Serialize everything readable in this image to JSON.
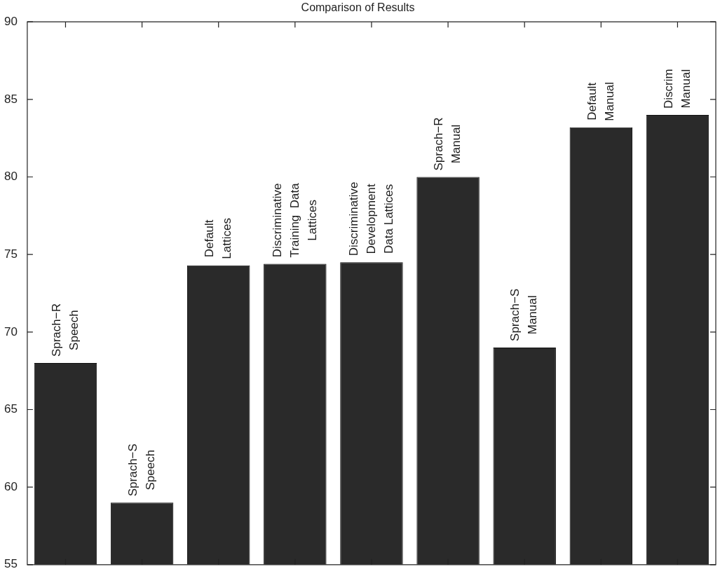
{
  "chart_data": {
    "type": "bar",
    "title": "Comparison of Results",
    "categories": [
      "Sprach−R\nSpeech",
      "Sprach−S\nSpeech",
      "Default\nLattices",
      "Discriminative\nTraining  Data\nLattices",
      "Discriminative\nDevelopment\nData Lattices",
      "Sprach−R\nManual",
      "Sprach−S\nManual",
      "Default\nManual",
      "Discrim\nManual"
    ],
    "values": [
      68,
      59,
      74.3,
      74.4,
      74.5,
      80,
      69,
      83.2,
      84
    ],
    "color": "#2a2a2a",
    "ylim": [
      55,
      90
    ],
    "yticks": [
      55,
      60,
      65,
      70,
      75,
      80,
      85,
      90
    ],
    "tick_labels": "y"
  }
}
